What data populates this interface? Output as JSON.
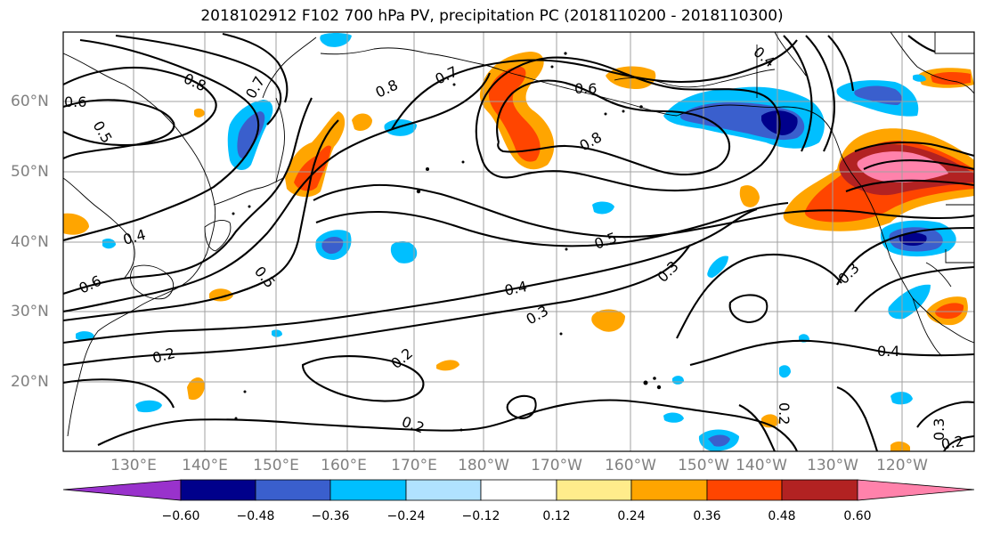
{
  "title": "2018102912 F102 700 hPa PV, precipitation PC (2018110200 - 2018110300)",
  "latitude_labels": [
    "60°N",
    "50°N",
    "40°N",
    "30°N",
    "20°N"
  ],
  "longitude_labels": [
    "130°E",
    "140°E",
    "150°E",
    "160°E",
    "170°E",
    "180°W",
    "170°W",
    "160°W",
    "150°W",
    "140°W",
    "130°W",
    "120°W"
  ],
  "contour_labels": [
    "0.6",
    "0.5",
    "0.8",
    "0.7",
    "0.8",
    "0.7",
    "0.6",
    "0.8",
    "0.4",
    "0.4",
    "0.5",
    "0.6",
    "0.5",
    "0.4",
    "0.3",
    "0.3",
    "0.3",
    "0.2",
    "0.2",
    "0.2",
    "0.2",
    "0.4",
    "0.3",
    "0.2"
  ],
  "colorbar": {
    "tick_labels": [
      "−0.60",
      "−0.48",
      "−0.36",
      "−0.24",
      "−0.12",
      "0.12",
      "0.24",
      "0.36",
      "0.48",
      "0.60"
    ],
    "colors": [
      "#9932cc",
      "#00008b",
      "#3a5fcd",
      "#00bfff",
      "#b0e2ff",
      "#ffffff",
      "#ffec8b",
      "#ffa500",
      "#ff4500",
      "#b22222",
      "#ff82ab"
    ]
  }
}
